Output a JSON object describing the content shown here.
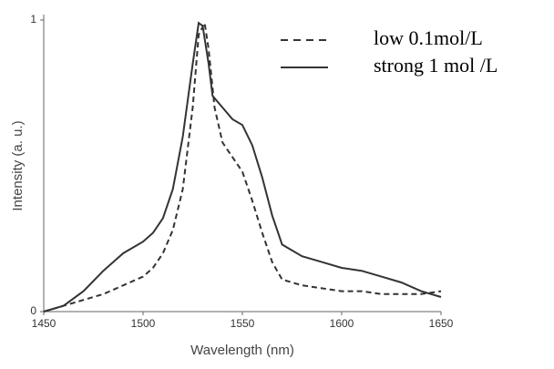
{
  "chart_data": {
    "type": "line",
    "xlabel": "Wavelength (nm)",
    "ylabel": "Intensity (a. u.)",
    "xlim": [
      1450,
      1650
    ],
    "xticks": [
      1450,
      1500,
      1550,
      1600,
      1650
    ],
    "ylim": [
      0,
      1
    ],
    "yticks": [
      0,
      1
    ],
    "series": [
      {
        "name": "low 0.1mol/L",
        "color": "#333333",
        "dash": true,
        "x": [
          1450,
          1460,
          1470,
          1480,
          1490,
          1500,
          1505,
          1510,
          1515,
          1520,
          1525,
          1528,
          1531,
          1533,
          1536,
          1540,
          1545,
          1550,
          1555,
          1560,
          1565,
          1570,
          1580,
          1590,
          1600,
          1610,
          1620,
          1630,
          1640,
          1650
        ],
        "values": [
          0,
          0.02,
          0.04,
          0.06,
          0.09,
          0.12,
          0.15,
          0.2,
          0.28,
          0.42,
          0.7,
          0.95,
          0.99,
          0.9,
          0.7,
          0.58,
          0.53,
          0.48,
          0.38,
          0.27,
          0.17,
          0.11,
          0.09,
          0.08,
          0.07,
          0.07,
          0.06,
          0.06,
          0.06,
          0.07
        ]
      },
      {
        "name": "strong 1 mol /L",
        "color": "#333333",
        "dash": false,
        "x": [
          1450,
          1460,
          1470,
          1480,
          1490,
          1500,
          1505,
          1510,
          1515,
          1520,
          1525,
          1528,
          1530,
          1533,
          1535,
          1540,
          1545,
          1550,
          1555,
          1560,
          1565,
          1570,
          1580,
          1590,
          1600,
          1610,
          1620,
          1630,
          1640,
          1650
        ],
        "values": [
          0,
          0.02,
          0.07,
          0.14,
          0.2,
          0.24,
          0.27,
          0.32,
          0.42,
          0.6,
          0.85,
          0.99,
          0.98,
          0.85,
          0.74,
          0.7,
          0.66,
          0.64,
          0.57,
          0.46,
          0.33,
          0.23,
          0.19,
          0.17,
          0.15,
          0.14,
          0.12,
          0.1,
          0.07,
          0.05
        ]
      }
    ]
  }
}
